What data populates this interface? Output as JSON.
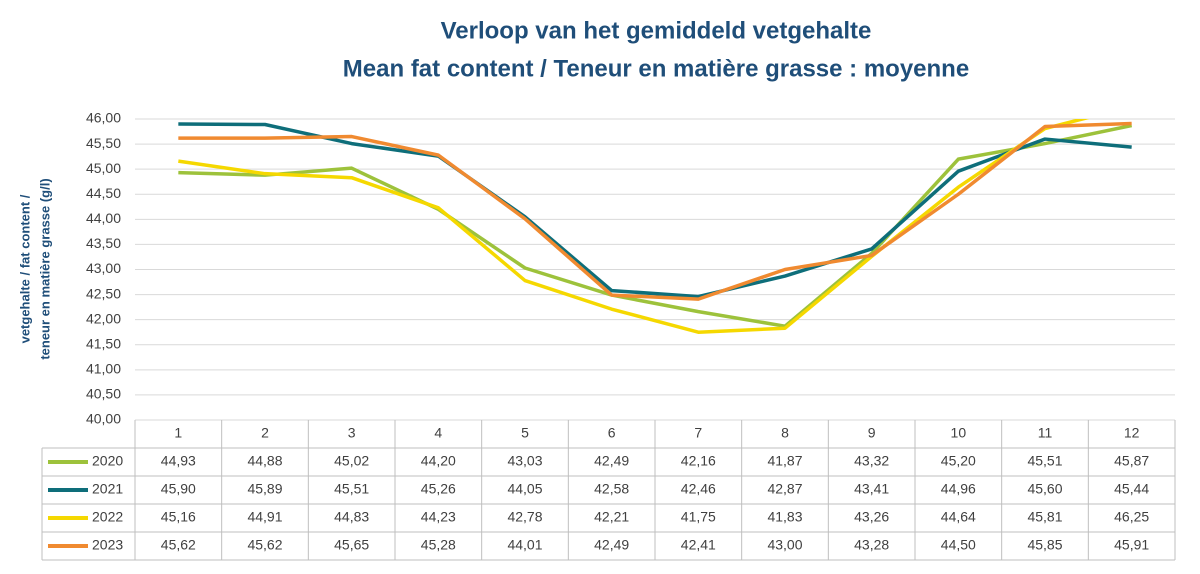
{
  "chart_data": {
    "type": "line",
    "title": "Verloop van het gemiddeld vetgehalte",
    "subtitle": "Mean fat content / Teneur en matière grasse : moyenne",
    "ylabel": [
      "vetgehalte / fat content /",
      "teneur en matière grasse (g/l)"
    ],
    "categories": [
      "1",
      "2",
      "3",
      "4",
      "5",
      "6",
      "7",
      "8",
      "9",
      "10",
      "11",
      "12"
    ],
    "ylim": [
      40,
      46
    ],
    "yticks": [
      {
        "value": 40,
        "label": "40,00"
      },
      {
        "value": 40.5,
        "label": "40,50"
      },
      {
        "value": 41,
        "label": "41,00"
      },
      {
        "value": 41.5,
        "label": "41,50"
      },
      {
        "value": 42,
        "label": "42,00"
      },
      {
        "value": 42.5,
        "label": "42,50"
      },
      {
        "value": 43,
        "label": "43,00"
      },
      {
        "value": 43.5,
        "label": "43,50"
      },
      {
        "value": 44,
        "label": "44,00"
      },
      {
        "value": 44.5,
        "label": "44,50"
      },
      {
        "value": 45,
        "label": "45,00"
      },
      {
        "value": 45.5,
        "label": "45,50"
      },
      {
        "value": 46,
        "label": "46,00"
      }
    ],
    "grid": true,
    "series": [
      {
        "name": "2020",
        "color": "#9dc23b",
        "values": [
          44.93,
          44.88,
          45.02,
          44.2,
          43.03,
          42.49,
          42.16,
          41.87,
          43.32,
          45.2,
          45.51,
          45.87
        ],
        "value_labels": [
          "44,93",
          "44,88",
          "45,02",
          "44,20",
          "43,03",
          "42,49",
          "42,16",
          "41,87",
          "43,32",
          "45,20",
          "45,51",
          "45,87"
        ]
      },
      {
        "name": "2021",
        "color": "#0e6e7a",
        "values": [
          45.9,
          45.89,
          45.51,
          45.26,
          44.05,
          42.58,
          42.46,
          42.87,
          43.41,
          44.96,
          45.6,
          45.44
        ],
        "value_labels": [
          "45,90",
          "45,89",
          "45,51",
          "45,26",
          "44,05",
          "42,58",
          "42,46",
          "42,87",
          "43,41",
          "44,96",
          "45,60",
          "45,44"
        ]
      },
      {
        "name": "2022",
        "color": "#f5d800",
        "values": [
          45.16,
          44.91,
          44.83,
          44.23,
          42.78,
          42.21,
          41.75,
          41.83,
          43.26,
          44.64,
          45.81,
          46.25
        ],
        "value_labels": [
          "45,16",
          "44,91",
          "44,83",
          "44,23",
          "42,78",
          "42,21",
          "41,75",
          "41,83",
          "43,26",
          "44,64",
          "45,81",
          "46,25"
        ]
      },
      {
        "name": "2023",
        "color": "#f08a30",
        "values": [
          45.62,
          45.62,
          45.65,
          45.28,
          44.01,
          42.49,
          42.41,
          43.0,
          43.28,
          44.5,
          45.85,
          45.91
        ],
        "value_labels": [
          "45,62",
          "45,62",
          "45,65",
          "45,28",
          "44,01",
          "42,49",
          "42,41",
          "43,00",
          "43,28",
          "44,50",
          "45,85",
          "45,91"
        ]
      }
    ]
  }
}
